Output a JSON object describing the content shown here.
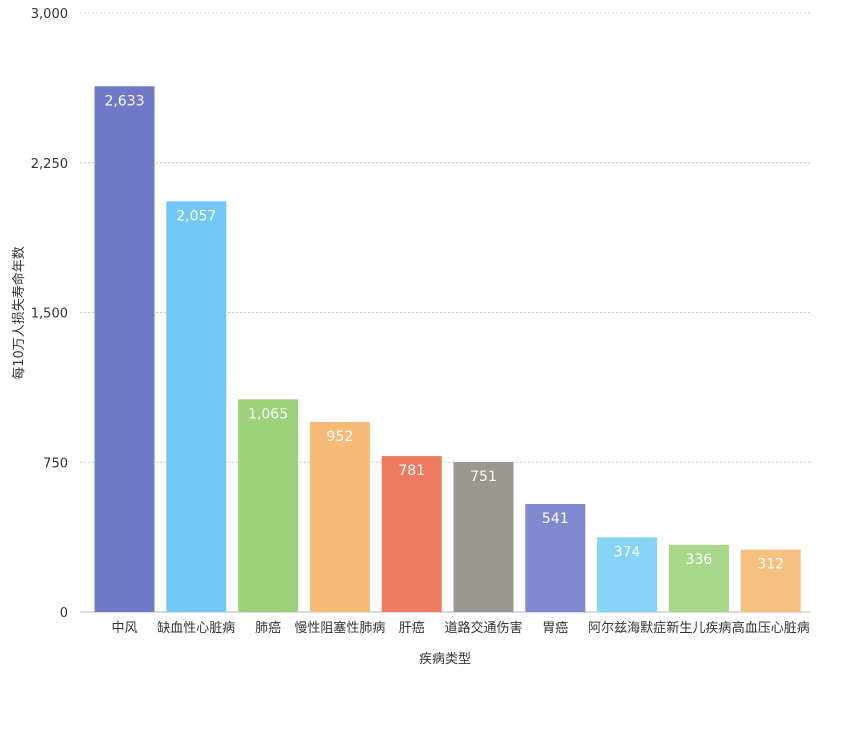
{
  "chart_data": {
    "type": "bar",
    "title": "",
    "xlabel": "疾病类型",
    "ylabel": "每10万人损失寿命年数",
    "ylim": [
      0,
      3000
    ],
    "yticks": [
      0,
      750,
      1500,
      2250,
      3000
    ],
    "ytick_labels": [
      "0",
      "750",
      "1,500",
      "2,250",
      "3,000"
    ],
    "grid": true,
    "categories": [
      "中风",
      "缺血性心脏病",
      "肺癌",
      "慢性阻塞性肺病",
      "肝癌",
      "道路交通伤害",
      "胃癌",
      "阿尔兹海默症",
      "新生儿疾病",
      "高血压心脏病"
    ],
    "values": [
      2633,
      2057,
      1065,
      952,
      781,
      751,
      541,
      374,
      336,
      312
    ],
    "value_labels": [
      "2,633",
      "2,057",
      "1,065",
      "952",
      "781",
      "751",
      "541",
      "374",
      "336",
      "312"
    ],
    "colors": [
      "#7079c8",
      "#72c8f5",
      "#9dd17a",
      "#f5bb77",
      "#ee7a5f",
      "#9a9690",
      "#8089cf",
      "#85d3f7",
      "#a8d68a",
      "#f6c07f"
    ]
  }
}
